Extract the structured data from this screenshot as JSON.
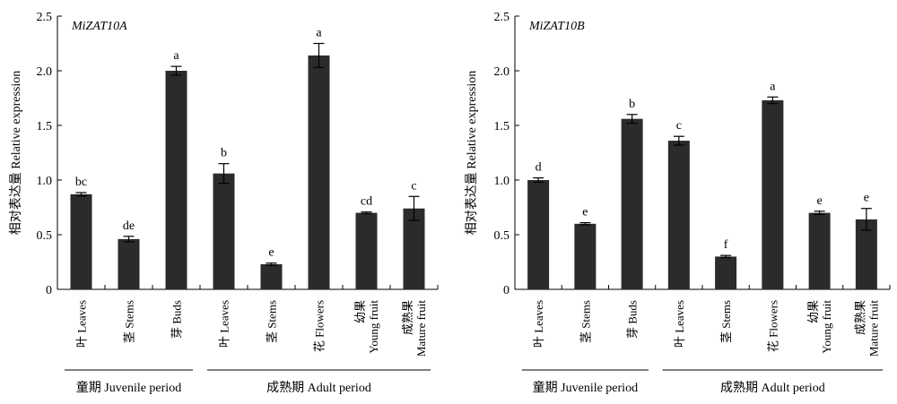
{
  "chart_data": [
    {
      "type": "bar",
      "title": "MiZAT10A",
      "ylabel": "相对表达量 Relative expression",
      "ylim": [
        0,
        2.5
      ],
      "yticks": [
        "0",
        "0.5",
        "1.0",
        "1.5",
        "2.0",
        "2.5"
      ],
      "categories": [
        [
          "叶 Leaves"
        ],
        [
          "茎 Stems"
        ],
        [
          "芽 Buds"
        ],
        [
          "叶 Leaves"
        ],
        [
          "茎 Stems"
        ],
        [
          "花 Flowers"
        ],
        [
          "幼果",
          "Young fruit"
        ],
        [
          "成熟果",
          "Mature fruit"
        ]
      ],
      "values": [
        0.87,
        0.46,
        2.0,
        1.06,
        0.23,
        2.14,
        0.7,
        0.74
      ],
      "errors": [
        0.015,
        0.025,
        0.04,
        0.09,
        0.01,
        0.11,
        0.008,
        0.11
      ],
      "significance": [
        "bc",
        "de",
        "a",
        "b",
        "e",
        "a",
        "cd",
        "c"
      ],
      "groups": [
        {
          "label": "童期 Juvenile period",
          "start": 0,
          "end": 2
        },
        {
          "label": "成熟期 Adult period",
          "start": 3,
          "end": 7
        }
      ],
      "bar_color": "#2b2b2b"
    },
    {
      "type": "bar",
      "title": "MiZAT10B",
      "ylabel": "相对表达量 Relative expression",
      "ylim": [
        0,
        2.5
      ],
      "yticks": [
        "0",
        "0.5",
        "1.0",
        "1.5",
        "2.0",
        "2.5"
      ],
      "categories": [
        [
          "叶 Leaves"
        ],
        [
          "茎 Stems"
        ],
        [
          "芽 Buds"
        ],
        [
          "叶 Leaves"
        ],
        [
          "茎 Stems"
        ],
        [
          "花 Flowers"
        ],
        [
          "幼果",
          "Young fruit"
        ],
        [
          "成熟果",
          "Mature fruit"
        ]
      ],
      "values": [
        1.0,
        0.6,
        1.56,
        1.36,
        0.3,
        1.73,
        0.7,
        0.64
      ],
      "errors": [
        0.02,
        0.01,
        0.04,
        0.04,
        0.01,
        0.03,
        0.015,
        0.1
      ],
      "significance": [
        "d",
        "e",
        "b",
        "c",
        "f",
        "a",
        "e",
        "e"
      ],
      "groups": [
        {
          "label": "童期 Juvenile period",
          "start": 0,
          "end": 2
        },
        {
          "label": "成熟期 Adult period",
          "start": 3,
          "end": 7
        }
      ],
      "bar_color": "#2b2b2b"
    }
  ]
}
